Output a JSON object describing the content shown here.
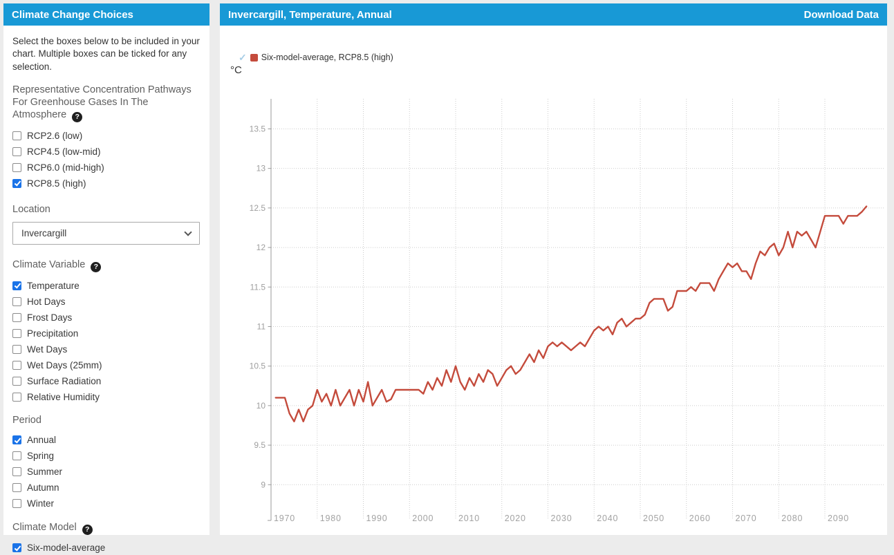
{
  "colors": {
    "header_blue": "#1899d6",
    "series_red": "#c44b3c",
    "checkbox_blue": "#1a73e8"
  },
  "sidebar": {
    "title": "Climate Change Choices",
    "intro": "Select the boxes below to be included in your chart. Multiple boxes can be ticked for any selection.",
    "rcp_heading": "Representative Concentration Pathways For Greenhouse Gases In The Atmosphere",
    "rcp_options": [
      {
        "label": "RCP2.6 (low)",
        "checked": false
      },
      {
        "label": "RCP4.5 (low-mid)",
        "checked": false
      },
      {
        "label": "RCP6.0 (mid-high)",
        "checked": false
      },
      {
        "label": "RCP8.5 (high)",
        "checked": true
      }
    ],
    "location_heading": "Location",
    "location_value": "Invercargill",
    "variable_heading": "Climate Variable",
    "variable_options": [
      {
        "label": "Temperature",
        "checked": true
      },
      {
        "label": "Hot Days",
        "checked": false
      },
      {
        "label": "Frost Days",
        "checked": false
      },
      {
        "label": "Precipitation",
        "checked": false
      },
      {
        "label": "Wet Days",
        "checked": false
      },
      {
        "label": "Wet Days (25mm)",
        "checked": false
      },
      {
        "label": "Surface Radiation",
        "checked": false
      },
      {
        "label": "Relative Humidity",
        "checked": false
      }
    ],
    "period_heading": "Period",
    "period_options": [
      {
        "label": "Annual",
        "checked": true
      },
      {
        "label": "Spring",
        "checked": false
      },
      {
        "label": "Summer",
        "checked": false
      },
      {
        "label": "Autumn",
        "checked": false
      },
      {
        "label": "Winter",
        "checked": false
      }
    ],
    "model_heading": "Climate Model",
    "model_options": [
      {
        "label": "Six-model-average",
        "checked": true
      }
    ]
  },
  "main": {
    "title": "Invercargill, Temperature, Annual",
    "download_label": "Download Data",
    "legend_check": "✓",
    "legend_label": "Six-model-average, RCP8.5 (high)",
    "unit_label": "°C"
  },
  "chart_data": {
    "type": "line",
    "title": "Invercargill, Temperature, Annual",
    "xlabel": "",
    "ylabel": "°C",
    "legend": [
      "Six-model-average, RCP8.5 (high)"
    ],
    "legend_position": "top-left",
    "grid": true,
    "grid_style": "dotted",
    "x_ticks": [
      1970,
      1980,
      1990,
      2000,
      2010,
      2020,
      2030,
      2040,
      2050,
      2060,
      2070,
      2080,
      2090
    ],
    "y_ticks": [
      9,
      9.5,
      10,
      10.5,
      11,
      11.5,
      12,
      12.5,
      13,
      13.5
    ],
    "xlim": [
      1970,
      2100
    ],
    "ylim": [
      8.6,
      13.9
    ],
    "series": [
      {
        "name": "Six-model-average, RCP8.5 (high)",
        "color": "#c44b3c",
        "x_start": 1971,
        "x_step": 1,
        "x_end": 2099,
        "values": [
          10.1,
          10.1,
          10.1,
          9.9,
          9.8,
          9.95,
          9.8,
          9.95,
          10.0,
          10.2,
          10.05,
          10.15,
          10.0,
          10.2,
          10.0,
          10.1,
          10.2,
          10.0,
          10.2,
          10.05,
          10.3,
          10.0,
          10.1,
          10.2,
          10.05,
          10.08,
          10.2,
          10.2,
          10.2,
          10.2,
          10.2,
          10.2,
          10.15,
          10.3,
          10.2,
          10.35,
          10.25,
          10.45,
          10.3,
          10.5,
          10.3,
          10.2,
          10.35,
          10.25,
          10.4,
          10.3,
          10.45,
          10.4,
          10.25,
          10.35,
          10.45,
          10.5,
          10.4,
          10.45,
          10.55,
          10.65,
          10.55,
          10.7,
          10.6,
          10.75,
          10.8,
          10.75,
          10.8,
          10.75,
          10.7,
          10.75,
          10.8,
          10.75,
          10.85,
          10.95,
          11.0,
          10.95,
          11.0,
          10.9,
          11.05,
          11.1,
          11.0,
          11.05,
          11.1,
          11.1,
          11.15,
          11.3,
          11.35,
          11.35,
          11.35,
          11.2,
          11.25,
          11.45,
          11.45,
          11.45,
          11.5,
          11.45,
          11.55,
          11.55,
          11.55,
          11.45,
          11.6,
          11.7,
          11.8,
          11.75,
          11.8,
          11.7,
          11.7,
          11.6,
          11.8,
          11.95,
          11.9,
          12.0,
          12.05,
          11.9,
          12.0,
          12.2,
          12.0,
          12.2,
          12.15,
          12.2,
          12.1,
          12.0,
          12.2,
          12.4,
          12.4,
          12.4,
          12.4,
          12.3,
          12.4,
          12.4,
          12.4,
          12.45,
          12.52
        ]
      }
    ]
  }
}
